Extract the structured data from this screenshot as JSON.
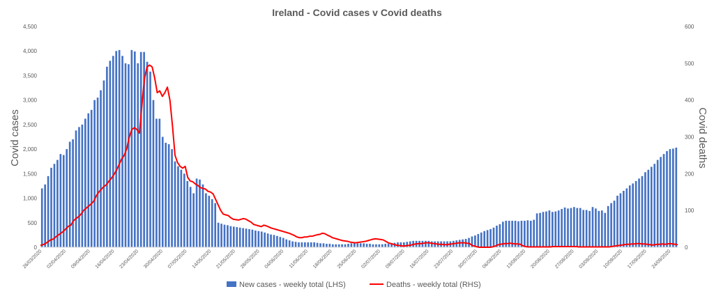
{
  "chart_data": {
    "type": "bar",
    "title": "Ireland - Covid cases v Covid deaths",
    "ylabel": "Covid cases",
    "y2label": "Covid deaths",
    "ylim": [
      0,
      4500
    ],
    "y2lim": [
      0,
      600
    ],
    "yticks": [
      "0",
      "500",
      "1,000",
      "1,500",
      "2,000",
      "2,500",
      "3,000",
      "3,500",
      "4,000",
      "4,500"
    ],
    "y2ticks": [
      "0",
      "100",
      "200",
      "300",
      "400",
      "500",
      "600"
    ],
    "x_tick_labels": [
      "26/03/2020",
      "02/04/2020",
      "09/04/2020",
      "16/04/2020",
      "23/04/2020",
      "30/04/2020",
      "07/05/2020",
      "14/05/2020",
      "21/05/2020",
      "28/05/2020",
      "04/06/2020",
      "11/06/2020",
      "18/06/2020",
      "25/06/2020",
      "02/07/2020",
      "09/07/2020",
      "16/07/2020",
      "23/07/2020",
      "30/07/2020",
      "06/08/2020",
      "13/08/2020",
      "20/08/2020",
      "27/08/2020",
      "03/09/2020",
      "10/09/2020",
      "17/09/2020",
      "24/09/2020"
    ],
    "grid": false,
    "legend_position": "bottom",
    "series": [
      {
        "name": "New cases - weekly total (LHS)",
        "axis": "left",
        "color": "#4472C4",
        "type": "bar",
        "values": [
          1200,
          1280,
          1450,
          1620,
          1700,
          1780,
          1900,
          1880,
          2000,
          2150,
          2200,
          2380,
          2450,
          2500,
          2620,
          2730,
          2800,
          3000,
          3050,
          3200,
          3400,
          3680,
          3800,
          3900,
          4000,
          4020,
          3900,
          3750,
          3730,
          4020,
          3990,
          3750,
          3980,
          3980,
          3780,
          3580,
          3000,
          2620,
          2620,
          2250,
          2130,
          2100,
          2000,
          1750,
          1650,
          1580,
          1500,
          1350,
          1230,
          1100,
          1400,
          1380,
          1280,
          1100,
          1050,
          980,
          900,
          500,
          480,
          460,
          450,
          430,
          420,
          410,
          400,
          390,
          380,
          370,
          360,
          340,
          330,
          320,
          300,
          280,
          260,
          250,
          230,
          210,
          190,
          160,
          140,
          120,
          110,
          100,
          100,
          100,
          100,
          100,
          100,
          90,
          80,
          80,
          70,
          70,
          60,
          60,
          60,
          60,
          60,
          70,
          80,
          80,
          80,
          80,
          80,
          70,
          70,
          60,
          60,
          60,
          60,
          70,
          70,
          80,
          90,
          100,
          100,
          100,
          110,
          120,
          130,
          130,
          130,
          130,
          130,
          130,
          120,
          120,
          120,
          120,
          120,
          120,
          120,
          130,
          140,
          150,
          160,
          170,
          190,
          220,
          240,
          270,
          300,
          330,
          350,
          370,
          400,
          440,
          470,
          520,
          540,
          540,
          540,
          540,
          530,
          540,
          540,
          550,
          540,
          560,
          690,
          700,
          720,
          730,
          750,
          720,
          730,
          750,
          780,
          810,
          790,
          800,
          820,
          800,
          800,
          760,
          760,
          740,
          820,
          790,
          740,
          750,
          700,
          840,
          900,
          950,
          1050,
          1100,
          1150,
          1200,
          1260,
          1300,
          1350,
          1400,
          1450,
          1530,
          1580,
          1640,
          1700,
          1780,
          1840,
          1900,
          1960,
          2000,
          2010,
          2030
        ]
      },
      {
        "name": "Deaths - weekly total (RHS)",
        "axis": "right",
        "color": "#FF0000",
        "type": "line",
        "values": [
          5,
          7,
          10,
          15,
          20,
          22,
          28,
          33,
          38,
          43,
          50,
          57,
          60,
          72,
          78,
          83,
          90,
          100,
          106,
          112,
          118,
          125,
          140,
          150,
          158,
          165,
          170,
          180,
          188,
          198,
          210,
          225,
          240,
          250,
          268,
          300,
          320,
          325,
          320,
          310,
          390,
          460,
          490,
          495,
          490,
          460,
          420,
          425,
          410,
          420,
          435,
          400,
          330,
          250,
          230,
          220,
          215,
          220,
          190,
          180,
          178,
          172,
          168,
          162,
          160,
          158,
          152,
          150,
          145,
          130,
          115,
          100,
          90,
          88,
          86,
          80,
          76,
          75,
          74,
          76,
          78,
          76,
          72,
          68,
          62,
          60,
          58,
          56,
          60,
          58,
          55,
          52,
          50,
          48,
          46,
          44,
          42,
          40,
          38,
          35,
          32,
          28,
          26,
          26,
          28,
          28,
          30,
          30,
          32,
          34,
          35,
          38,
          37,
          33,
          30,
          26,
          24,
          22,
          20,
          18,
          17,
          16,
          14,
          13,
          12,
          13,
          14,
          15,
          16,
          18,
          20,
          22,
          23,
          22,
          21,
          20,
          16,
          12,
          10,
          8,
          6,
          5,
          4,
          3,
          4,
          5,
          6,
          8,
          9,
          10,
          10,
          11,
          12,
          12,
          11,
          10,
          9,
          8,
          8,
          7,
          7,
          8,
          9,
          10,
          11,
          12,
          12,
          12,
          11,
          10,
          5,
          3,
          1,
          0,
          0,
          0,
          0,
          0,
          1,
          3,
          6,
          8,
          9,
          10,
          10,
          11,
          10,
          9,
          9,
          8,
          4,
          2,
          1,
          1,
          1,
          1,
          1,
          1,
          1,
          1,
          1,
          1,
          2,
          2,
          2,
          2,
          2,
          2,
          2,
          2,
          2,
          2,
          1,
          1,
          1,
          1,
          1,
          1,
          1,
          1,
          1,
          1,
          1,
          1,
          1,
          2,
          3,
          4,
          5,
          6,
          7,
          8,
          8,
          9,
          9,
          10,
          10,
          9,
          9,
          8,
          7,
          6,
          7,
          8,
          8,
          9,
          8,
          9,
          10,
          9,
          8,
          7
        ]
      }
    ]
  }
}
